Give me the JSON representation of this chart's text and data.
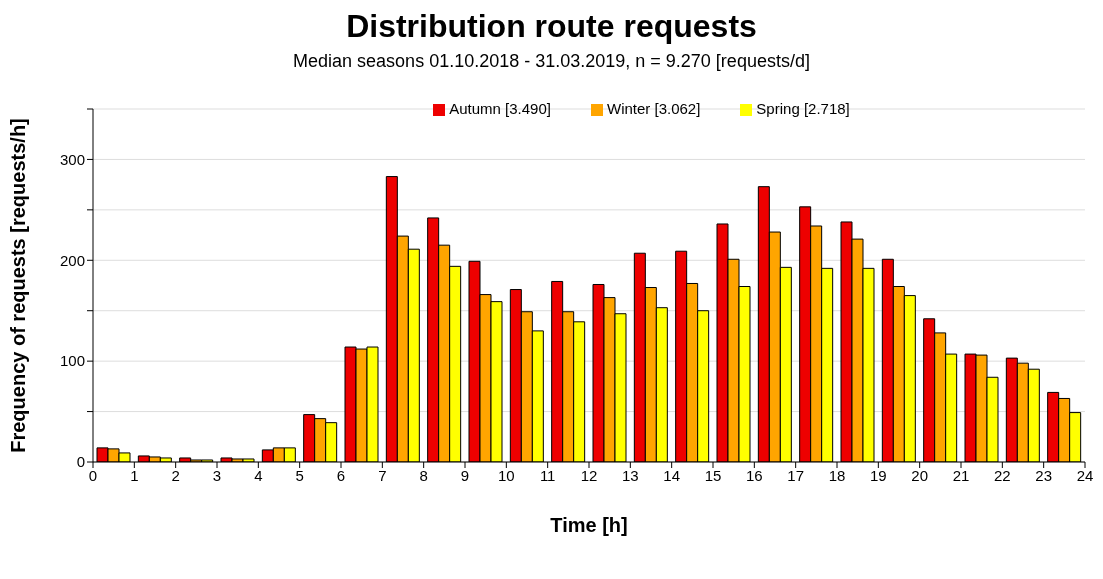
{
  "chart_data": {
    "type": "bar",
    "title": "Distribution route requests",
    "subtitle": "Median seasons 01.10.2018 - 31.03.2019, n = 9.270 [requests/d]",
    "xlabel": "Time [h]",
    "ylabel": "Frequency of requests [requests/h]",
    "x": [
      0.5,
      1.5,
      2.5,
      3.5,
      4.5,
      5.5,
      6.5,
      7.5,
      8.5,
      9.5,
      10.5,
      11.5,
      12.5,
      13.5,
      14.5,
      15.5,
      16.5,
      17.5,
      18.5,
      19.5,
      20.5,
      21.5,
      22.5,
      23.5
    ],
    "series": [
      {
        "name": "Autumn [3.490]",
        "color": "#ee0000",
        "values": [
          14,
          6,
          4,
          4,
          12,
          47,
          114,
          283,
          242,
          199,
          171,
          179,
          176,
          207,
          209,
          236,
          273,
          253,
          238,
          201,
          142,
          107,
          103,
          69
        ]
      },
      {
        "name": "Winter [3.062]",
        "color": "#ffa500",
        "values": [
          13,
          5,
          2,
          3,
          14,
          43,
          112,
          224,
          215,
          166,
          149,
          149,
          163,
          173,
          177,
          201,
          228,
          234,
          221,
          174,
          128,
          106,
          98,
          63
        ]
      },
      {
        "name": "Spring [2.718]",
        "color": "#ffff00",
        "values": [
          9,
          4,
          2,
          3,
          14,
          39,
          114,
          211,
          194,
          159,
          130,
          139,
          147,
          153,
          150,
          174,
          193,
          192,
          192,
          165,
          107,
          84,
          92,
          49
        ]
      }
    ],
    "xlim": [
      0,
      24
    ],
    "xticks": [
      0,
      1,
      2,
      3,
      4,
      5,
      6,
      7,
      8,
      9,
      10,
      11,
      12,
      13,
      14,
      15,
      16,
      17,
      18,
      19,
      20,
      21,
      22,
      23,
      24
    ],
    "ylim": [
      0,
      350
    ],
    "yticks": [
      0,
      {
        "value": 50,
        "label": null
      },
      100,
      {
        "value": 150,
        "label": null
      },
      200,
      {
        "value": 250,
        "label": null
      },
      300,
      {
        "value": 350,
        "label": null
      }
    ],
    "grid": "y",
    "legend": "top"
  }
}
